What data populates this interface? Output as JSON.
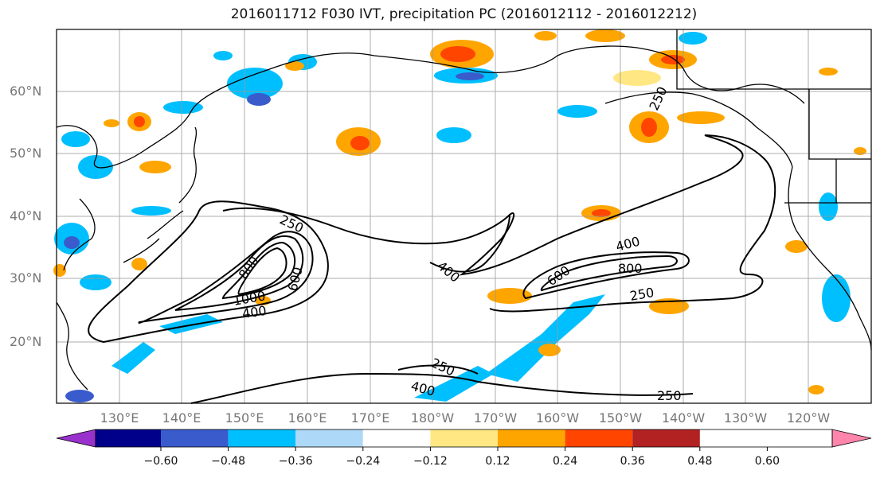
{
  "title": "2016011712 F030 IVT, precipitation PC (2016012112 - 2016012212)",
  "lat_labels": [
    "60°N",
    "50°N",
    "40°N",
    "30°N",
    "20°N"
  ],
  "lon_labels": [
    "130°E",
    "140°E",
    "150°E",
    "160°E",
    "170°E",
    "180°W",
    "170°W",
    "160°W",
    "150°W",
    "140°W",
    "130°W",
    "120°W"
  ],
  "colorbar": {
    "ticks": [
      "−0.60",
      "−0.48",
      "−0.36",
      "−0.24",
      "−0.12",
      "0.12",
      "0.24",
      "0.36",
      "0.48",
      "0.60"
    ],
    "colors": [
      "#9932CC",
      "#00008B",
      "#3A5BCC",
      "#00BFFF",
      "#ADD8F7",
      "#FFFFFF",
      "#FFE884",
      "#FFA500",
      "#FF4500",
      "#B22222",
      "#FF85AA"
    ]
  },
  "contour_labels": [
    "250",
    "250",
    "250",
    "250",
    "250",
    "400",
    "400",
    "400",
    "400",
    "600",
    "600",
    "800",
    "800",
    "1000"
  ],
  "colors": {
    "contour": "#000000",
    "grid": "#999999",
    "coast": "#000000"
  }
}
